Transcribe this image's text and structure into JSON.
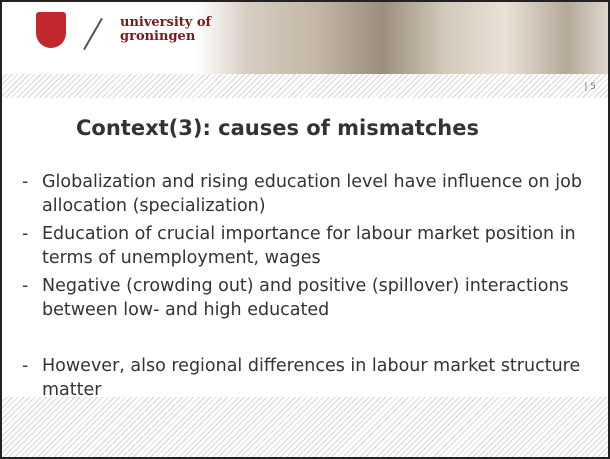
{
  "header": {
    "logo_line1": "university of",
    "logo_line2": "groningen",
    "slide_number": "| 5"
  },
  "slide": {
    "title": "Context(3): causes of mismatches",
    "bullet_marker": "-",
    "bullets": [
      "Globalization and rising education level have influence on job allocation (specialization)",
      "Education of crucial importance for labour market position in terms of unemployment, wages",
      "Negative (crowding out) and positive (spillover) interactions between low- and high educated",
      "However, also regional differences in labour market structure matter"
    ]
  }
}
